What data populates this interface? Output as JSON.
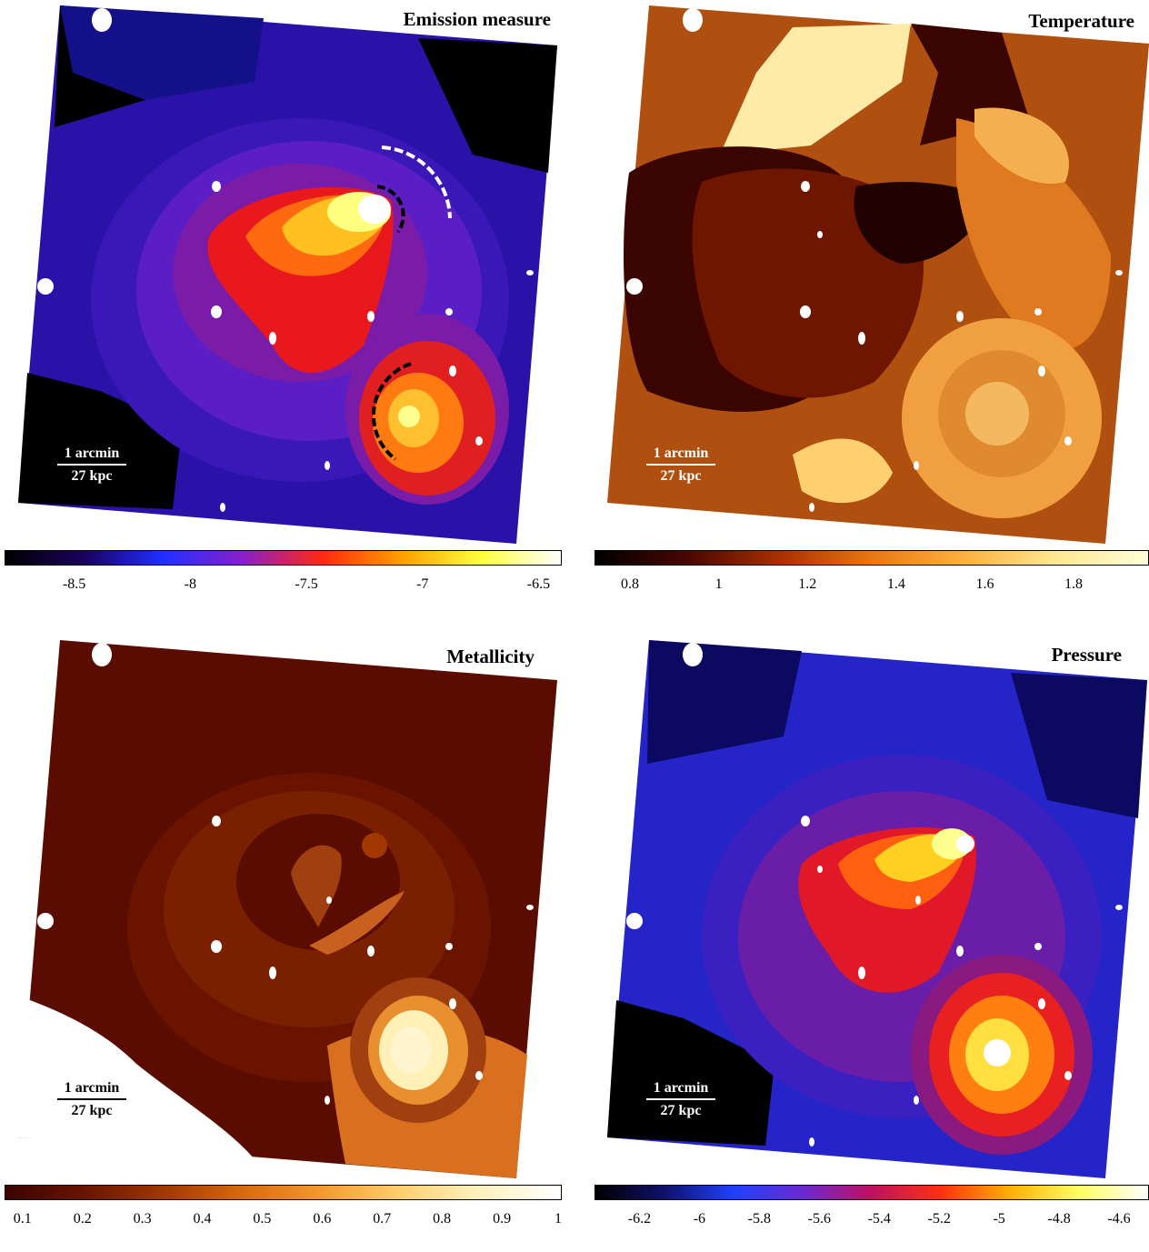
{
  "panels": [
    {
      "title": "Emission measure",
      "scalebar": {
        "top": "1 arcmin",
        "bottom": "27 kpc"
      },
      "colorbar": {
        "ticks": [
          "-8.5",
          "-8",
          "-7.5",
          "-7",
          "-6.5"
        ],
        "values": [
          -8.5,
          -8,
          -7.5,
          -7,
          -6.5
        ],
        "min": -8.8,
        "max": -6.4,
        "colors": [
          "#000000",
          "#1a0060",
          "#2030ff",
          "#8a1fc8",
          "#ff2a10",
          "#ffa000",
          "#ffff40",
          "#ffffff"
        ]
      }
    },
    {
      "title": "Temperature",
      "scalebar": {
        "top": "1 arcmin",
        "bottom": "27 kpc"
      },
      "colorbar": {
        "ticks": [
          "0.8",
          "1",
          "1.2",
          "1.4",
          "1.6",
          "1.8"
        ],
        "values": [
          0.8,
          1.0,
          1.2,
          1.4,
          1.6,
          1.8
        ],
        "min": 0.72,
        "max": 1.97,
        "colors": [
          "#000000",
          "#4a0600",
          "#a83000",
          "#e87814",
          "#ffb040",
          "#ffe890",
          "#ffffd8"
        ]
      }
    },
    {
      "title": "Metallicity",
      "scalebar": {
        "top": "1 arcmin",
        "bottom": "27 kpc"
      },
      "colorbar": {
        "ticks": [
          "0.1",
          "0.2",
          "0.3",
          "0.4",
          "0.5",
          "0.6",
          "0.7",
          "0.8",
          "0.9",
          "1"
        ],
        "values": [
          0.1,
          0.2,
          0.3,
          0.4,
          0.5,
          0.6,
          0.7,
          0.8,
          0.9,
          1.0
        ],
        "min": 0.07,
        "max": 1.0,
        "colors": [
          "#3a0400",
          "#6a1400",
          "#a03800",
          "#d86a10",
          "#f49a30",
          "#ffd070",
          "#fff2c0",
          "#ffffff"
        ]
      }
    },
    {
      "title": "Pressure",
      "scalebar": {
        "top": "1 arcmin",
        "bottom": "27 kpc"
      },
      "colorbar": {
        "ticks": [
          "-6.2",
          "-6",
          "-5.8",
          "-5.6",
          "-5.4",
          "-5.2",
          "-5",
          "-4.8",
          "-4.6"
        ],
        "values": [
          -6.2,
          -6.0,
          -5.8,
          -5.6,
          -5.4,
          -5.2,
          -5.0,
          -4.8,
          -4.6
        ],
        "min": -6.35,
        "max": -4.5,
        "colors": [
          "#000000",
          "#10106a",
          "#2040ff",
          "#6a2ad0",
          "#c01060",
          "#ff3010",
          "#ffb000",
          "#ffff60",
          "#ffffff"
        ]
      }
    }
  ],
  "theme_colors": {
    "emission": {
      "bg": "#2a12a8",
      "outer": "#0d0a66",
      "mid": "#6a20c0",
      "inner": "#e01840",
      "core": "#ff8a10",
      "peak": "#ffff60"
    },
    "temperature": {
      "bg": "#b05010",
      "dark": "#3a0400",
      "mid": "#6e1600",
      "light": "#f0a040",
      "pale": "#ffeaa8"
    },
    "metallicity": {
      "bg": "#5a0c00",
      "mid": "#7a2000",
      "inner": "#a04010",
      "core": "#e08a30",
      "peak": "#fff0b8"
    },
    "pressure": {
      "bg": "#2424c8",
      "outer": "#0c0a60",
      "mid": "#6a1ea8",
      "inner": "#e01828",
      "core": "#ff9010",
      "peak": "#ffff80"
    }
  }
}
